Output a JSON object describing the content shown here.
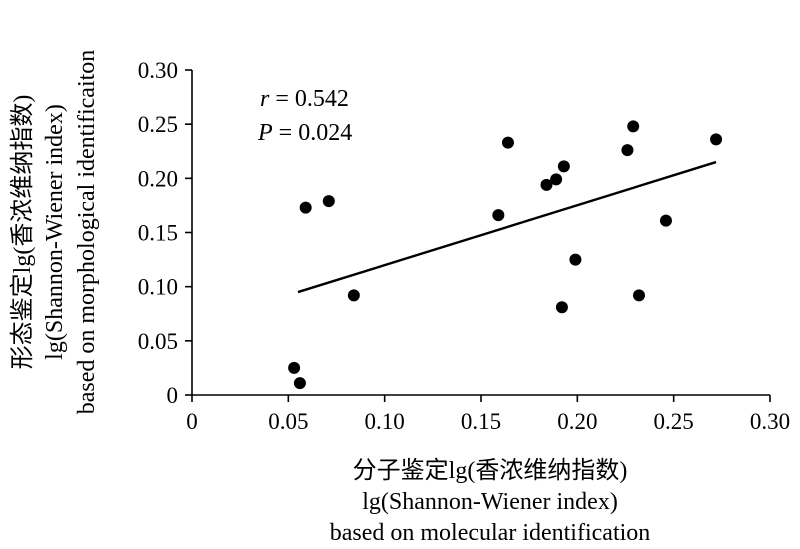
{
  "chart_data": {
    "type": "scatter",
    "x_ticks": [
      "0",
      "0.05",
      "0.10",
      "0.15",
      "0.20",
      "0.25",
      "0.30"
    ],
    "y_ticks": [
      "0",
      "0.05",
      "0.10",
      "0.15",
      "0.20",
      "0.25",
      "0.30"
    ],
    "xlim": [
      0,
      0.3
    ],
    "ylim": [
      0,
      0.3
    ],
    "xlabel": [
      "分子鉴定lg(香浓维纳指数)",
      "lg(Shannon-Wiener index)",
      "based on molecular identification"
    ],
    "ylabel": [
      "形态鉴定lg(香浓维纳指数)",
      "lg(Shannon-Wiener index)",
      "based on morphological identificaiton"
    ],
    "stats": {
      "r_symbol": "r",
      "r_text": " = 0.542",
      "p_symbol": "P",
      "p_text": " = 0.024"
    },
    "points": [
      {
        "x": 0.053,
        "y": 0.025
      },
      {
        "x": 0.056,
        "y": 0.011
      },
      {
        "x": 0.059,
        "y": 0.173
      },
      {
        "x": 0.071,
        "y": 0.179
      },
      {
        "x": 0.084,
        "y": 0.092
      },
      {
        "x": 0.159,
        "y": 0.166
      },
      {
        "x": 0.164,
        "y": 0.233
      },
      {
        "x": 0.184,
        "y": 0.194
      },
      {
        "x": 0.189,
        "y": 0.199
      },
      {
        "x": 0.192,
        "y": 0.081
      },
      {
        "x": 0.193,
        "y": 0.211
      },
      {
        "x": 0.199,
        "y": 0.125
      },
      {
        "x": 0.226,
        "y": 0.226
      },
      {
        "x": 0.229,
        "y": 0.248
      },
      {
        "x": 0.232,
        "y": 0.092
      },
      {
        "x": 0.246,
        "y": 0.161
      },
      {
        "x": 0.272,
        "y": 0.236
      }
    ],
    "trendline": {
      "x": [
        0.055,
        0.272
      ],
      "y": [
        0.095,
        0.215
      ]
    },
    "grid": false,
    "legend": "none"
  }
}
